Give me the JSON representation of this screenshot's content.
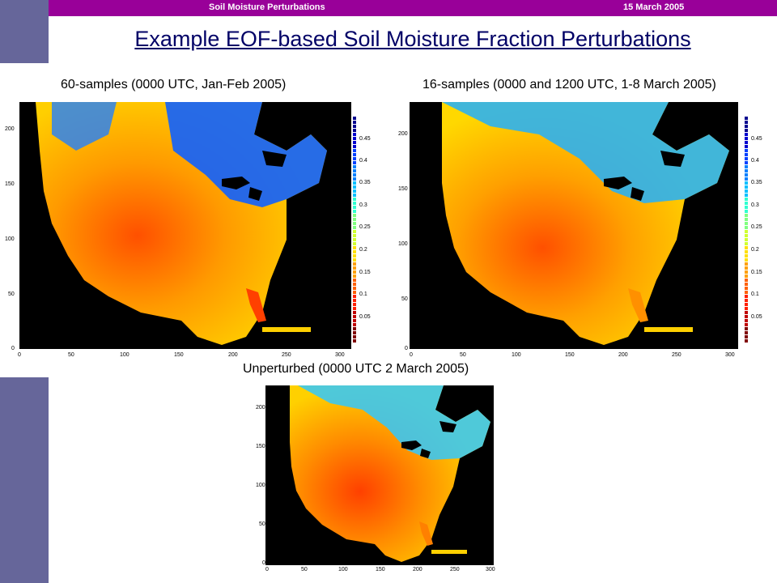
{
  "header": {
    "left_text": "Soil Moisture Perturbations",
    "right_text": "15 March 2005"
  },
  "slide": {
    "title": "Example EOF-based Soil Moisture Fraction Perturbations"
  },
  "panels": {
    "left": {
      "title": "60-samples (0000 UTC, Jan-Feb 2005)"
    },
    "right": {
      "title": "16-samples (0000 and 1200 UTC, 1-8 March 2005)"
    },
    "bottom": {
      "title": "Unperturbed (0000 UTC 2 March 2005)"
    }
  },
  "axes": {
    "x_ticks": [
      "0",
      "50",
      "100",
      "150",
      "200",
      "250",
      "300"
    ],
    "y_ticks": [
      "0",
      "50",
      "100",
      "150",
      "200"
    ]
  },
  "colorbar": {
    "labels": [
      "0.45",
      "0.4",
      "0.35",
      "0.3",
      "0.25",
      "0.2",
      "0.15",
      "0.1",
      "0.05"
    ],
    "colors": [
      "#00008f",
      "#0000cf",
      "#0040ff",
      "#0080ff",
      "#00c0ff",
      "#30ffd0",
      "#80ff80",
      "#d0ff30",
      "#ffe000",
      "#ffa000",
      "#ff6000",
      "#ff2000",
      "#c00000",
      "#800000"
    ]
  }
}
